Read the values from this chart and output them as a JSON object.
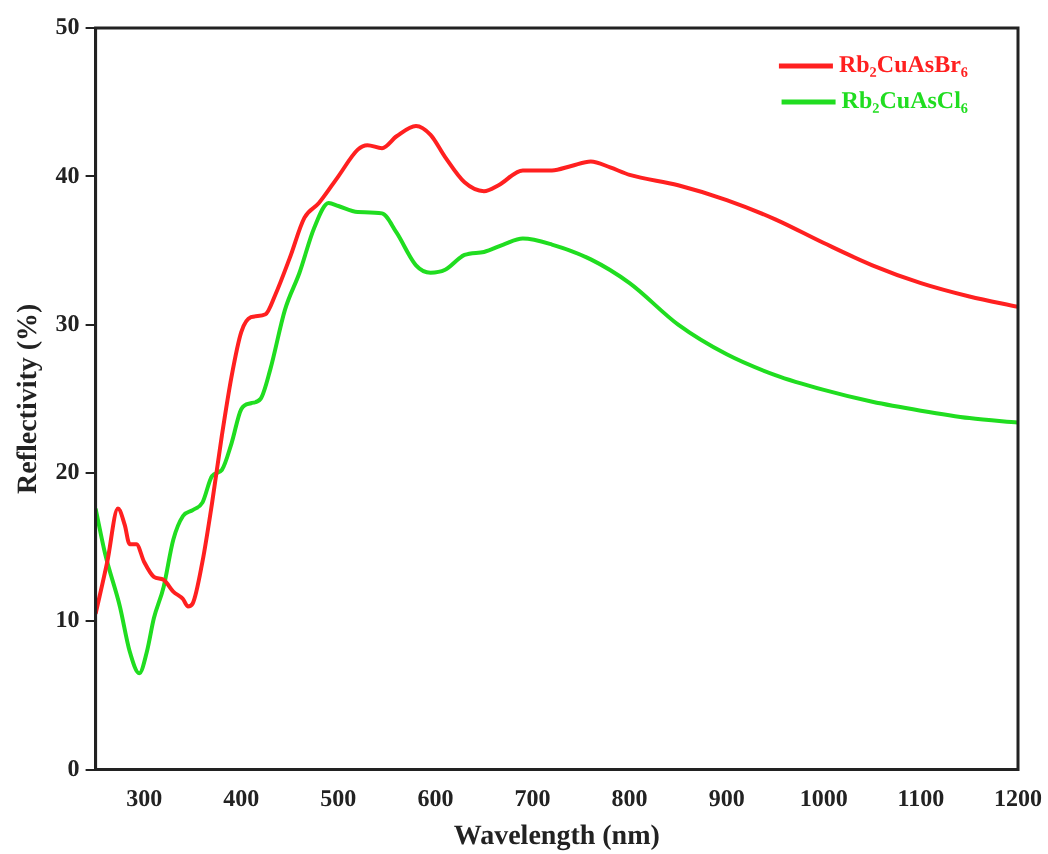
{
  "chart_data": {
    "type": "line",
    "xlabel": "Wavelength (nm)",
    "ylabel": "Reflectivity (%)",
    "xlim": [
      250,
      1200
    ],
    "xticks": [
      300,
      400,
      500,
      600,
      700,
      800,
      900,
      1000,
      1100,
      1200
    ],
    "ylim": [
      0,
      50
    ],
    "yticks": [
      0,
      10,
      20,
      30,
      40,
      50
    ],
    "grid": false,
    "legend": "top right",
    "marker": "none",
    "line_style": "solid",
    "series": [
      {
        "name": "Rb₂CuAsBr₆",
        "color": "#ff2020",
        "x": [
          250,
          262,
          273,
          280,
          285,
          292,
          300,
          310,
          320,
          330,
          340,
          345,
          350,
          360,
          370,
          380,
          390,
          400,
          410,
          425,
          435,
          450,
          465,
          480,
          500,
          520,
          530,
          545,
          560,
          580,
          595,
          610,
          630,
          650,
          665,
          690,
          720,
          740,
          760,
          780,
          800,
          850,
          900,
          950,
          1000,
          1050,
          1100,
          1150,
          1200
        ],
        "values": [
          10.5,
          14,
          17.6,
          16.5,
          15.2,
          15.2,
          14,
          13,
          12.8,
          12,
          11.5,
          11,
          11.2,
          14,
          18,
          22.5,
          26.5,
          29.5,
          30.5,
          30.7,
          32,
          34.5,
          37.2,
          38.2,
          40,
          41.8,
          42.1,
          41.9,
          42.7,
          43.4,
          42.8,
          41.3,
          39.6,
          39,
          39.4,
          40.4,
          40.4,
          40.7,
          41,
          40.6,
          40.1,
          39.4,
          38.4,
          37.1,
          35.5,
          34,
          32.8,
          31.9,
          31.2
        ]
      },
      {
        "name": "Rb₂CuAsCl₆",
        "color": "#20dd20",
        "x": [
          250,
          260,
          275,
          285,
          295,
          303,
          310,
          320,
          330,
          340,
          350,
          360,
          370,
          380,
          390,
          400,
          410,
          420,
          430,
          445,
          460,
          475,
          490,
          500,
          520,
          545,
          560,
          580,
          595,
          610,
          630,
          650,
          670,
          690,
          720,
          760,
          800,
          850,
          900,
          950,
          1000,
          1050,
          1100,
          1150,
          1200
        ],
        "values": [
          17.6,
          14.5,
          11,
          8,
          6.5,
          8,
          10.2,
          12.3,
          15.5,
          17.1,
          17.5,
          18,
          19.8,
          20.2,
          22,
          24.3,
          24.7,
          25,
          27,
          31,
          33.5,
          36.5,
          38.2,
          38,
          37.6,
          37.5,
          36.2,
          34,
          33.5,
          33.7,
          34.7,
          34.9,
          35.4,
          35.8,
          35.4,
          34.4,
          32.8,
          30,
          28,
          26.6,
          25.6,
          24.8,
          24.2,
          23.7,
          23.4
        ]
      }
    ]
  }
}
